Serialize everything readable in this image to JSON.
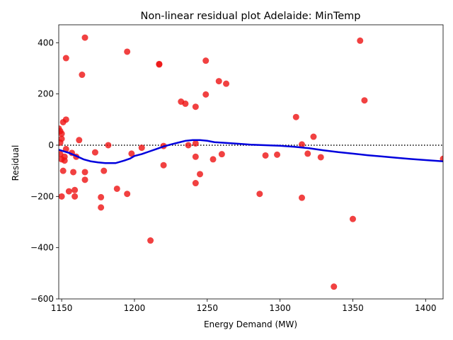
{
  "chart_data": {
    "type": "scatter",
    "title": "Non-linear residual plot Adelaide: MinTemp",
    "xlabel": "Energy Demand (MW)",
    "ylabel": "Residual",
    "xlim": [
      1148,
      1412
    ],
    "ylim": [
      -600,
      470
    ],
    "xticks": [
      1150,
      1200,
      1250,
      1300,
      1350,
      1400
    ],
    "yticks": [
      -600,
      -400,
      -200,
      0,
      200,
      400
    ],
    "grid": false,
    "zero_line": 0,
    "colors": {
      "points": "#ee1111",
      "fit": "#0000dd",
      "zero_line": "#000000"
    },
    "series": [
      {
        "type": "scatter",
        "points": [
          [
            1148,
            65
          ],
          [
            1149,
            55
          ],
          [
            1150,
            45
          ],
          [
            1150,
            25
          ],
          [
            1149,
            10
          ],
          [
            1149,
            -35
          ],
          [
            1150,
            -55
          ],
          [
            1151,
            90
          ],
          [
            1150,
            -200
          ],
          [
            1151,
            -100
          ],
          [
            1152,
            -45
          ],
          [
            1152,
            -60
          ],
          [
            1153,
            100
          ],
          [
            1153,
            -15
          ],
          [
            1153,
            340
          ],
          [
            1155,
            -180
          ],
          [
            1157,
            -30
          ],
          [
            1158,
            -105
          ],
          [
            1159,
            -175
          ],
          [
            1159,
            -200
          ],
          [
            1160,
            -45
          ],
          [
            1162,
            20
          ],
          [
            1164,
            275
          ],
          [
            1166,
            420
          ],
          [
            1166,
            -105
          ],
          [
            1166,
            -135
          ],
          [
            1173,
            -28
          ],
          [
            1177,
            -203
          ],
          [
            1177,
            -243
          ],
          [
            1179,
            -100
          ],
          [
            1182,
            0
          ],
          [
            1188,
            -170
          ],
          [
            1195,
            365
          ],
          [
            1195,
            -190
          ],
          [
            1198,
            -33
          ],
          [
            1205,
            -10
          ],
          [
            1211,
            -372
          ],
          [
            1217,
            315
          ],
          [
            1217,
            317
          ],
          [
            1220,
            -3
          ],
          [
            1220,
            -78
          ],
          [
            1232,
            170
          ],
          [
            1235,
            162
          ],
          [
            1237,
            0
          ],
          [
            1242,
            150
          ],
          [
            1242,
            7
          ],
          [
            1242,
            -45
          ],
          [
            1242,
            -148
          ],
          [
            1245,
            -113
          ],
          [
            1249,
            330
          ],
          [
            1249,
            198
          ],
          [
            1254,
            -55
          ],
          [
            1258,
            250
          ],
          [
            1260,
            -35
          ],
          [
            1263,
            240
          ],
          [
            1286,
            -190
          ],
          [
            1290,
            -40
          ],
          [
            1298,
            -37
          ],
          [
            1311,
            110
          ],
          [
            1315,
            3
          ],
          [
            1315,
            -205
          ],
          [
            1319,
            -33
          ],
          [
            1323,
            33
          ],
          [
            1328,
            -47
          ],
          [
            1337,
            -552
          ],
          [
            1350,
            -288
          ],
          [
            1355,
            408
          ],
          [
            1358,
            175
          ],
          [
            1412,
            -53
          ]
        ]
      },
      {
        "type": "line",
        "points": [
          [
            1148,
            -18
          ],
          [
            1155,
            -30
          ],
          [
            1160,
            -42
          ],
          [
            1165,
            -55
          ],
          [
            1170,
            -63
          ],
          [
            1175,
            -67
          ],
          [
            1180,
            -70
          ],
          [
            1187,
            -70
          ],
          [
            1193,
            -60
          ],
          [
            1197,
            -52
          ],
          [
            1200,
            -42
          ],
          [
            1205,
            -35
          ],
          [
            1210,
            -25
          ],
          [
            1215,
            -15
          ],
          [
            1220,
            -5
          ],
          [
            1225,
            3
          ],
          [
            1230,
            10
          ],
          [
            1235,
            17
          ],
          [
            1240,
            20
          ],
          [
            1245,
            20
          ],
          [
            1250,
            17
          ],
          [
            1255,
            12
          ],
          [
            1260,
            10
          ],
          [
            1270,
            6
          ],
          [
            1280,
            2
          ],
          [
            1290,
            0
          ],
          [
            1300,
            -2
          ],
          [
            1310,
            -6
          ],
          [
            1320,
            -12
          ],
          [
            1330,
            -20
          ],
          [
            1340,
            -27
          ],
          [
            1350,
            -33
          ],
          [
            1360,
            -39
          ],
          [
            1370,
            -44
          ],
          [
            1380,
            -49
          ],
          [
            1390,
            -54
          ],
          [
            1400,
            -58
          ],
          [
            1412,
            -63
          ]
        ]
      }
    ]
  }
}
